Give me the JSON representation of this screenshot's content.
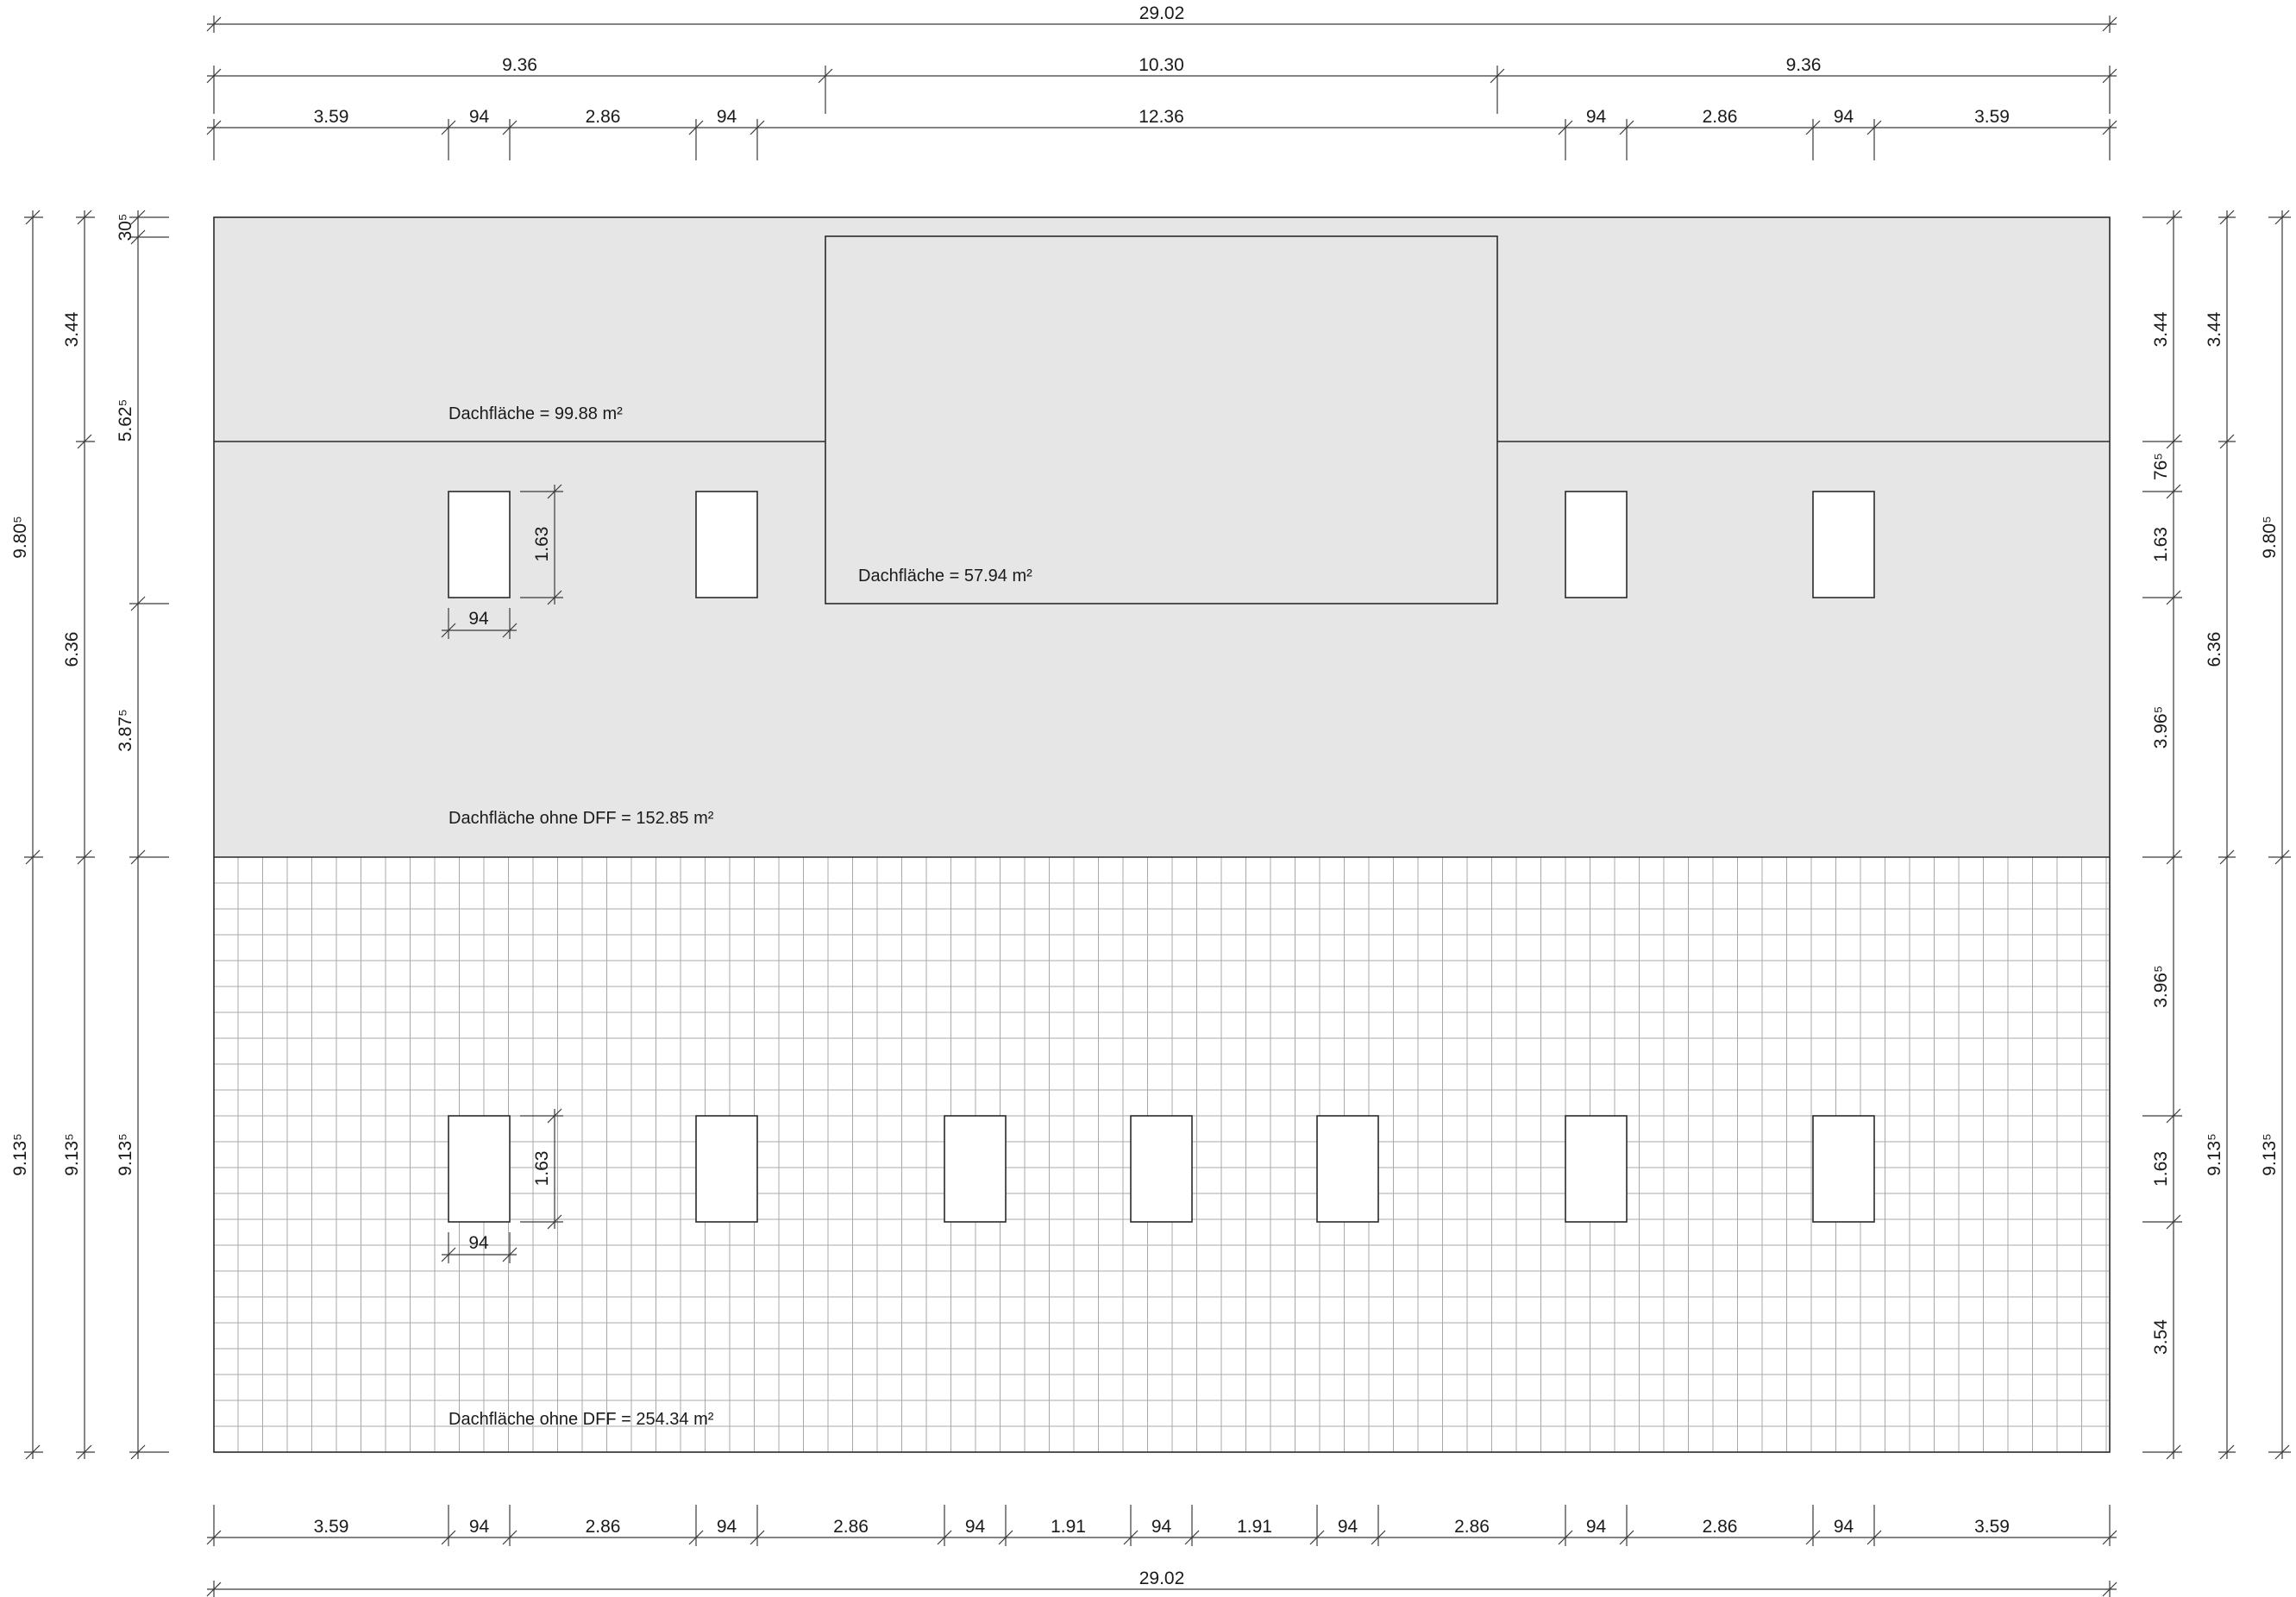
{
  "dimensions": {
    "top_overall": "29.02",
    "top_middle": [
      "9.36",
      "10.30",
      "9.36"
    ],
    "top_detail": [
      "3.59",
      "94",
      "2.86",
      "94",
      "12.36",
      "94",
      "2.86",
      "94",
      "3.59"
    ],
    "bottom_detail": [
      "3.59",
      "94",
      "2.86",
      "94",
      "2.86",
      "94",
      "1.91",
      "94",
      "1.91",
      "94",
      "2.86",
      "94",
      "2.86",
      "94",
      "3.59"
    ],
    "bottom_overall": "29.02",
    "left_outer": [
      "9.80⁵",
      "9.13⁵"
    ],
    "left_middle": [
      "3.44",
      "6.36",
      "9.13⁵"
    ],
    "left_inner": [
      "30⁵",
      "5.62⁵",
      "3.87⁵",
      "9.13⁵"
    ],
    "right_inner": [
      "3.44",
      "76⁵",
      "1.63",
      "3.96⁵",
      "3.96⁵",
      "1.63",
      "3.54"
    ],
    "right_middle": [
      "3.44",
      "6.36",
      "9.13⁵"
    ],
    "right_outer": [
      "9.80⁵",
      "9.13⁵"
    ],
    "window_width": "94",
    "window_height": "1.63"
  },
  "areas": {
    "upper_roof": "Dachfläche = 99.88 m²",
    "dormer": "Dachfläche = 57.94 m²",
    "upper_without_dff": "Dachfläche ohne DFF = 152.85 m²",
    "lower_without_dff": "Dachfläche ohne DFF = 254.34 m²"
  },
  "colors": {
    "upper_fill": "#e6e6e6",
    "lower_fill": "#ffffff",
    "grid": "#a8a8a8",
    "line": "#2a2a2a"
  }
}
